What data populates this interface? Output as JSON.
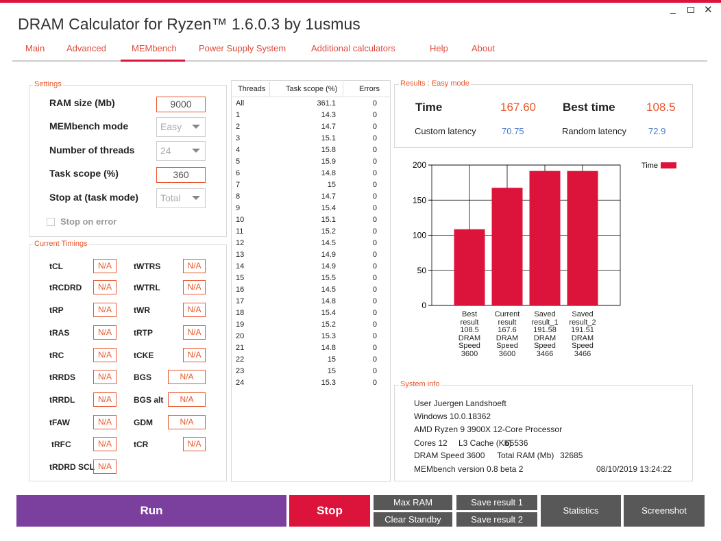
{
  "window": {
    "title": "DRAM Calculator for Ryzen™ 1.6.0.3 by 1usmus"
  },
  "tabs": [
    "Main",
    "Advanced",
    "MEMbench",
    "Power Supply System",
    "Additional calculators",
    "Help",
    "About"
  ],
  "settings": {
    "title": "Settings",
    "fields": [
      {
        "label": "RAM size (Mb)",
        "value": 9000
      },
      {
        "label": "MEMbench mode",
        "value": "Easy"
      },
      {
        "label": "Number of threads",
        "value": 24
      },
      {
        "label": "Task scope (%)",
        "value": 360
      },
      {
        "label": "Stop at (task mode)",
        "value": "Total"
      }
    ],
    "checkbox": "Stop on error"
  },
  "timings": {
    "title": "Current Timings",
    "left": [
      {
        "label": "tCL",
        "value": "N/A"
      },
      {
        "label": "tRCDRD",
        "value": "N/A"
      },
      {
        "label": "tRP",
        "value": "N/A"
      },
      {
        "label": "tRAS",
        "value": "N/A"
      },
      {
        "label": "tRC",
        "value": "N/A"
      },
      {
        "label": "tRRDS",
        "value": "N/A"
      },
      {
        "label": "tRRDL",
        "value": "N/A"
      },
      {
        "label": "tFAW",
        "value": "N/A"
      },
      {
        "label": "tRFC",
        "value": "N/A"
      },
      {
        "label": "tRDRD SCL",
        "value": "N/A"
      }
    ],
    "right": [
      {
        "label": "tWTRS",
        "value": "N/A"
      },
      {
        "label": "tWTRL",
        "value": "N/A"
      },
      {
        "label": "tWR",
        "value": "N/A"
      },
      {
        "label": "tRTP",
        "value": "N/A"
      },
      {
        "label": "tCKE",
        "value": "N/A"
      },
      {
        "label": "BGS",
        "value": "N/A"
      },
      {
        "label": "BGS alt",
        "value": "N/A"
      },
      {
        "label": "GDM",
        "value": "N/A"
      },
      {
        "label": "tCR",
        "value": "N/A"
      }
    ]
  },
  "threads_table": {
    "headers": [
      "Threads",
      "Task scope (%)",
      "Errors"
    ],
    "rows": [
      [
        "All",
        361.1,
        0
      ],
      [
        1,
        14.3,
        0
      ],
      [
        2,
        14.7,
        0
      ],
      [
        3,
        15.1,
        0
      ],
      [
        4,
        15.8,
        0
      ],
      [
        5,
        15.9,
        0
      ],
      [
        6,
        14.8,
        0
      ],
      [
        7,
        15,
        0
      ],
      [
        8,
        14.7,
        0
      ],
      [
        9,
        15.4,
        0
      ],
      [
        10,
        15.1,
        0
      ],
      [
        11,
        15.2,
        0
      ],
      [
        12,
        14.5,
        0
      ],
      [
        13,
        14.9,
        0
      ],
      [
        14,
        14.9,
        0
      ],
      [
        15,
        15.5,
        0
      ],
      [
        16,
        14.5,
        0
      ],
      [
        17,
        14.8,
        0
      ],
      [
        18,
        15.4,
        0
      ],
      [
        19,
        15.2,
        0
      ],
      [
        20,
        15.3,
        0
      ],
      [
        21,
        14.8,
        0
      ],
      [
        22,
        15,
        0
      ],
      [
        23,
        15,
        0
      ],
      [
        24,
        15.3,
        0
      ]
    ]
  },
  "results": {
    "title": "Results : Easy mode",
    "items": [
      {
        "label": "Time",
        "value": "167.60"
      },
      {
        "label": "Best time",
        "value": 108.5
      },
      {
        "label": "Custom latency",
        "value": 70.75
      },
      {
        "label": "Random latency",
        "value": 72.9
      }
    ]
  },
  "chart_data": {
    "type": "bar",
    "categories": [
      "Best result 108.5 DRAM Speed 3600",
      "Current result 167.6 DRAM Speed 3600",
      "Saved result_1 191.58 DRAM Speed 3466",
      "Saved result_2 191.51 DRAM Speed 3466"
    ],
    "series": [
      {
        "name": "Time",
        "color": "#dc143c",
        "values": [
          108.5,
          167.6,
          191.58,
          191.51
        ]
      }
    ],
    "ylim": [
      0,
      200
    ],
    "yticks": [
      0,
      50,
      100,
      150,
      200
    ],
    "grid": true,
    "legend": "top-right"
  },
  "system_info": {
    "title": "System info",
    "rows": [
      [
        "User Juergen Landshoeft"
      ],
      [
        "Windows 10.0.18362"
      ],
      [
        "AMD Ryzen 9 3900X 12-Core Processor"
      ],
      [
        "Cores 12",
        "L3 Cache (Kb)",
        "65536"
      ],
      [
        "DRAM Speed 3600",
        "Total RAM (Mb)",
        "32685"
      ],
      [
        "MEMbench version 0.8 beta 2",
        "08/10/2019 13:24:22"
      ]
    ]
  },
  "buttons": [
    "Run",
    "Stop",
    "Max RAM",
    "Clear Standby",
    "Save result 1",
    "Save result 2",
    "Statistics",
    "Screenshot"
  ]
}
